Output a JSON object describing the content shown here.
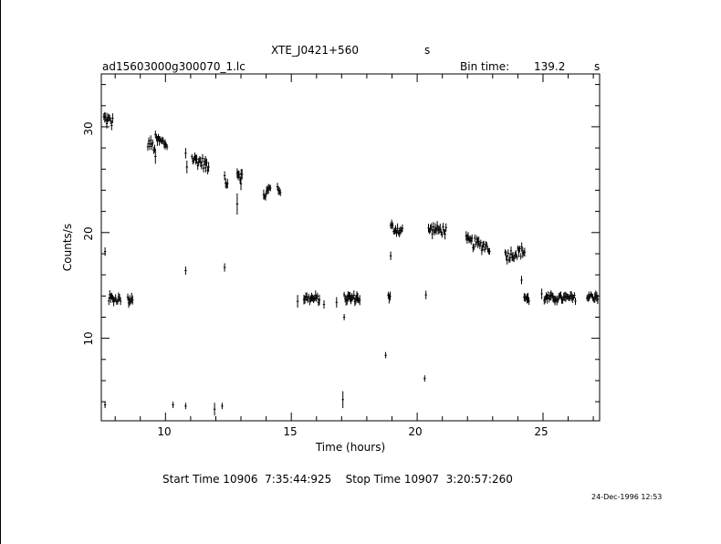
{
  "chart_data": {
    "type": "scatter",
    "title": "XTE_J0421+560",
    "title_suffix": "s",
    "subtitle_left": "ad15603000g300070_1.lc",
    "bin_time_label": "Bin time:",
    "bin_time_value": "139.2",
    "bin_time_unit": "s",
    "xlabel": "Time (hours)",
    "ylabel": "Counts/s",
    "xlim": [
      7.45,
      27.25
    ],
    "ylim": [
      2.2,
      35.0
    ],
    "xticks": [
      "10",
      "15",
      "20",
      "25"
    ],
    "yticks": [
      "10",
      "20",
      "30"
    ],
    "start_stop": "Start Time 10906  7:35:44:925    Stop Time 10907  3:20:57:260",
    "date_stamp": "24-Dec-1996 12:53",
    "segments": [
      {
        "x0": 7.55,
        "x1": 7.9,
        "y0": 30.8,
        "y1": 30.4,
        "noise": 0.55
      },
      {
        "x0": 9.3,
        "x1": 9.6,
        "y0": 28.5,
        "y1": 28.0,
        "noise": 0.5
      },
      {
        "x0": 9.6,
        "x1": 10.1,
        "y0": 28.8,
        "y1": 28.3,
        "noise": 0.5
      },
      {
        "x0": 11.05,
        "x1": 11.6,
        "y0": 27.0,
        "y1": 26.5,
        "noise": 0.5
      },
      {
        "x0": 11.6,
        "x1": 11.75,
        "y0": 26.3,
        "y1": 26.0,
        "noise": 0.4
      },
      {
        "x0": 12.35,
        "x1": 12.5,
        "y0": 25.3,
        "y1": 24.5,
        "noise": 0.5
      },
      {
        "x0": 12.85,
        "x1": 13.05,
        "y0": 25.8,
        "y1": 25.2,
        "noise": 0.5
      },
      {
        "x0": 13.9,
        "x1": 14.2,
        "y0": 23.5,
        "y1": 24.2,
        "noise": 0.55
      },
      {
        "x0": 14.45,
        "x1": 14.6,
        "y0": 24.2,
        "y1": 23.9,
        "noise": 0.4
      },
      {
        "x0": 7.75,
        "x1": 8.25,
        "y0": 13.8,
        "y1": 13.7,
        "noise": 0.35
      },
      {
        "x0": 8.5,
        "x1": 8.7,
        "y0": 13.6,
        "y1": 13.8,
        "noise": 0.35
      },
      {
        "x0": 15.5,
        "x1": 16.15,
        "y0": 13.8,
        "y1": 13.7,
        "noise": 0.35
      },
      {
        "x0": 17.1,
        "x1": 17.75,
        "y0": 13.8,
        "y1": 13.8,
        "noise": 0.35
      },
      {
        "x0": 18.85,
        "x1": 18.95,
        "y0": 13.9,
        "y1": 13.8,
        "noise": 0.3
      },
      {
        "x0": 18.95,
        "x1": 19.45,
        "y0": 20.5,
        "y1": 20.1,
        "noise": 0.45
      },
      {
        "x0": 20.45,
        "x1": 21.15,
        "y0": 20.3,
        "y1": 20.2,
        "noise": 0.45
      },
      {
        "x0": 21.95,
        "x1": 22.9,
        "y0": 19.2,
        "y1": 18.6,
        "noise": 0.5
      },
      {
        "x0": 23.5,
        "x1": 24.3,
        "y0": 17.8,
        "y1": 18.3,
        "noise": 0.5
      },
      {
        "x0": 24.25,
        "x1": 24.45,
        "y0": 13.9,
        "y1": 13.6,
        "noise": 0.3
      },
      {
        "x0": 25.05,
        "x1": 26.3,
        "y0": 13.8,
        "y1": 13.8,
        "noise": 0.3
      },
      {
        "x0": 26.75,
        "x1": 27.2,
        "y0": 13.9,
        "y1": 14.0,
        "noise": 0.35
      }
    ],
    "isolated_points": [
      {
        "x": 7.6,
        "y": 18.2,
        "err": 0.4
      },
      {
        "x": 7.6,
        "y": 3.7,
        "err": 0.3
      },
      {
        "x": 9.6,
        "y": 27.2,
        "err": 0.7
      },
      {
        "x": 10.8,
        "y": 27.5,
        "err": 0.5
      },
      {
        "x": 10.85,
        "y": 26.2,
        "err": 0.6
      },
      {
        "x": 10.8,
        "y": 16.4,
        "err": 0.4
      },
      {
        "x": 10.3,
        "y": 3.7,
        "err": 0.3
      },
      {
        "x": 10.8,
        "y": 3.6,
        "err": 0.3
      },
      {
        "x": 11.95,
        "y": 3.3,
        "err": 0.6
      },
      {
        "x": 12.25,
        "y": 3.6,
        "err": 0.3
      },
      {
        "x": 12.35,
        "y": 16.7,
        "err": 0.4
      },
      {
        "x": 12.85,
        "y": 22.7,
        "err": 1.0
      },
      {
        "x": 13.0,
        "y": 24.6,
        "err": 0.6
      },
      {
        "x": 15.25,
        "y": 13.5,
        "err": 0.6
      },
      {
        "x": 16.8,
        "y": 13.4,
        "err": 0.5
      },
      {
        "x": 17.05,
        "y": 4.2,
        "err": 0.8
      },
      {
        "x": 17.1,
        "y": 12.0,
        "err": 0.3
      },
      {
        "x": 16.3,
        "y": 13.2,
        "err": 0.4
      },
      {
        "x": 18.75,
        "y": 8.4,
        "err": 0.3
      },
      {
        "x": 18.95,
        "y": 17.8,
        "err": 0.4
      },
      {
        "x": 20.3,
        "y": 6.2,
        "err": 0.3
      },
      {
        "x": 20.35,
        "y": 14.1,
        "err": 0.4
      },
      {
        "x": 24.15,
        "y": 15.5,
        "err": 0.4
      },
      {
        "x": 24.95,
        "y": 14.2,
        "err": 0.5
      }
    ]
  }
}
